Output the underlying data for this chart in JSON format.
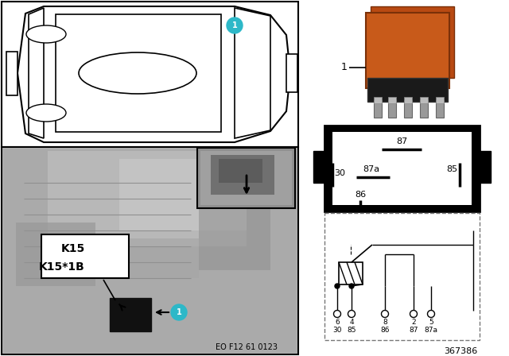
{
  "bg": "#ffffff",
  "cyan": "#2db8c8",
  "orange": "#c85a1a",
  "black": "#000000",
  "white": "#ffffff",
  "gray1": "#c0c0c0",
  "gray2": "#a8a8a8",
  "gray3": "#888888",
  "gray_dark": "#606060",
  "part_number": "367386",
  "eo_text": "EO F12 61 0123",
  "label_line1": "K15",
  "label_line2": "K15*1B",
  "pin_box_labels": [
    "87",
    "87a",
    "85",
    "30",
    "86"
  ],
  "schematic_nums": [
    "6",
    "4",
    "8",
    "2",
    "5"
  ],
  "schematic_names": [
    "30",
    "85",
    "86",
    "87",
    "87a"
  ]
}
